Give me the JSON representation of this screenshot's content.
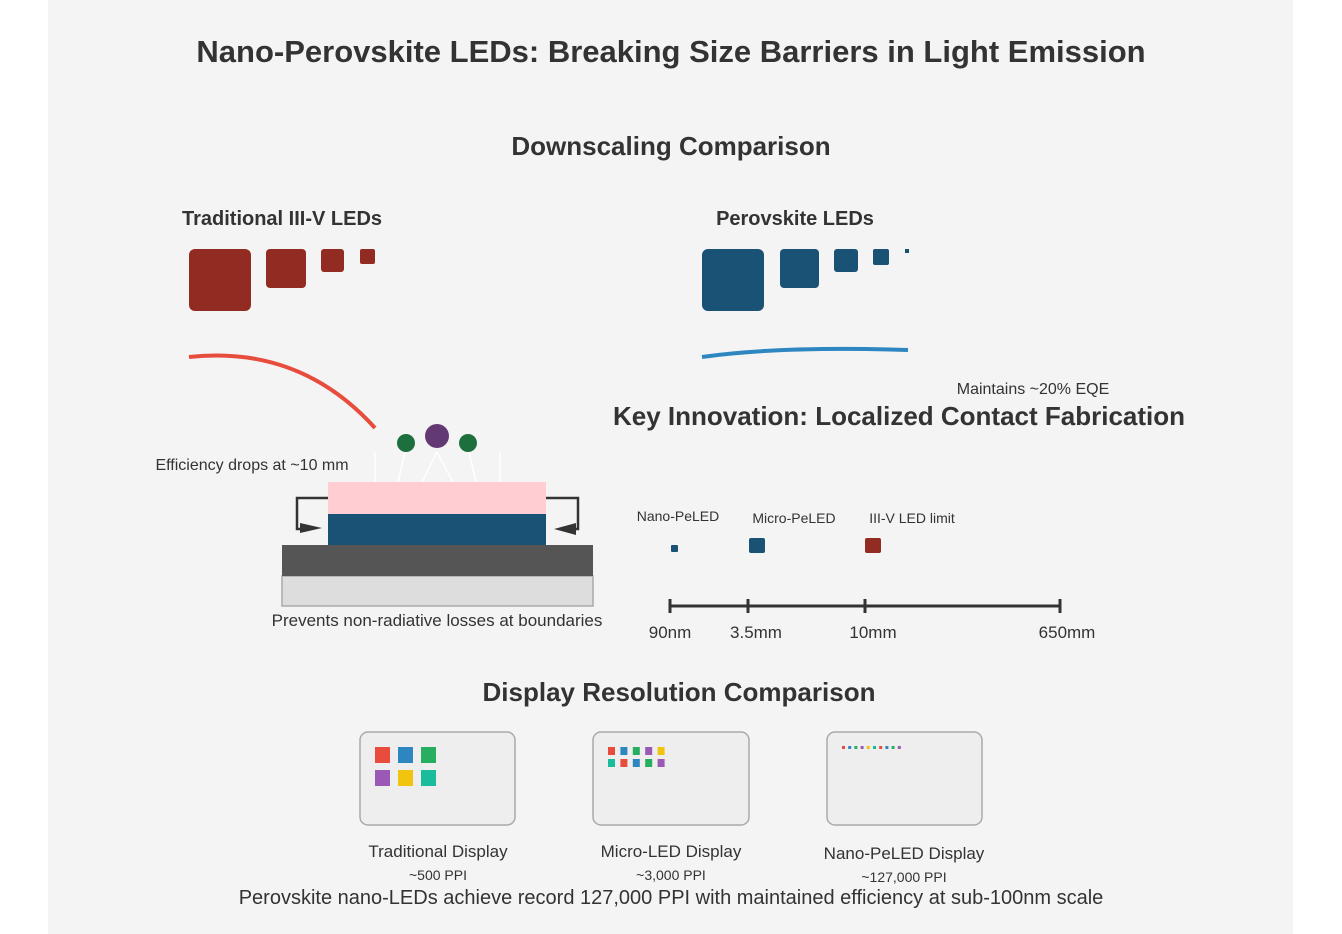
{
  "title": "Nano-Perovskite LEDs: Breaking Size Barriers in Light Emission",
  "downscaling": {
    "heading": "Downscaling Comparison",
    "traditional": {
      "label": "Traditional III-V LEDs",
      "note": "Efficiency drops at ~10 mm",
      "color": "#922b21",
      "curve_color": "#e74c3c"
    },
    "perovskite": {
      "label": "Perovskite LEDs",
      "note": "Maintains ~20% EQE",
      "color": "#1a5276",
      "curve_color": "#2e86c1"
    }
  },
  "innovation": {
    "heading": "Key Innovation: Localized Contact Fabrication",
    "caption": "Prevents non-radiative losses at boundaries",
    "layer_colors": {
      "top": "#ffcdd2",
      "active": "#1a5276",
      "electrode": "#555555",
      "substrate": "#dddddd"
    },
    "photon_colors": [
      "#1e6f3e",
      "#633974",
      "#1e6f3e"
    ]
  },
  "scale": {
    "items": [
      {
        "label": "Nano-PeLED",
        "color": "#1a5276"
      },
      {
        "label": "Micro-PeLED",
        "color": "#1a5276"
      },
      {
        "label": "III-V LED limit",
        "color": "#922b21"
      }
    ],
    "ticks": [
      "90nm",
      "3.5mm",
      "10mm",
      "650mm"
    ]
  },
  "displays": {
    "heading": "Display Resolution Comparison",
    "items": [
      {
        "label": "Traditional Display",
        "ppi": "~500 PPI"
      },
      {
        "label": "Micro-LED Display",
        "ppi": "~3,000 PPI"
      },
      {
        "label": "Nano-PeLED Display",
        "ppi": "~127,000 PPI"
      }
    ],
    "pixel_colors": [
      "#e74c3c",
      "#2e86c1",
      "#27ae60",
      "#9b59b6",
      "#f1c40f",
      "#1abc9c"
    ]
  },
  "footer": "Perovskite nano-LEDs achieve record 127,000 PPI with maintained efficiency at sub-100nm scale"
}
